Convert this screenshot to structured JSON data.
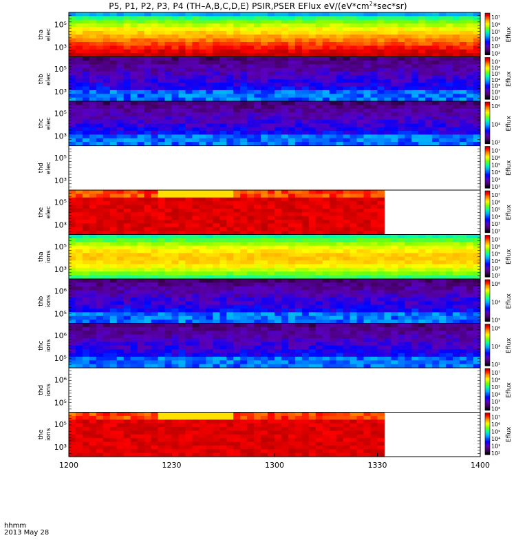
{
  "title": {
    "prefix": "P5, P1, P2, P3, P4 (TH–A,B,C,D,E) PSIR,PSER EFlux eV/(eV*cm",
    "sup": "2",
    "suffix": "*sec*sr)"
  },
  "footer": {
    "line1": "hhmm",
    "line2": "2013 May 28"
  },
  "colors": {
    "background": "#ffffff",
    "frame": "#000000",
    "nodata": "#ffffff"
  },
  "chart_data": {
    "type": "heatmap",
    "x_axis": {
      "range": [
        "12:00",
        "14:00"
      ],
      "ticks": [
        "1200",
        "1230",
        "1300",
        "1330",
        "1400"
      ],
      "label": "hhmm"
    },
    "colorbar_name": "Eflux",
    "panels": [
      {
        "label_top": "tha",
        "label_bottom": "elec",
        "yticks": [
          "10⁵",
          "10³"
        ],
        "cbar": [
          "10⁷",
          "10⁶",
          "10⁵",
          "10⁴",
          "10³",
          "10²"
        ],
        "pattern": "full-strong",
        "data_end": "14:00"
      },
      {
        "label_top": "thb",
        "label_bottom": "elec",
        "yticks": [
          "10⁵",
          "10³"
        ],
        "cbar": [
          "10⁷",
          "10⁶",
          "10⁵",
          "10⁴",
          "10³",
          "10²",
          "10¹"
        ],
        "pattern": "noisy-low",
        "data_end": "14:00"
      },
      {
        "label_top": "thc",
        "label_bottom": "elec",
        "yticks": [
          "10⁵",
          "10³"
        ],
        "cbar": [
          "10⁶",
          "10⁴",
          "10²"
        ],
        "pattern": "noisy-low",
        "data_end": "14:00"
      },
      {
        "label_top": "thd",
        "label_bottom": "elec",
        "yticks": [
          "10⁵",
          "10³"
        ],
        "cbar": [
          "10⁷",
          "10⁶",
          "10⁵",
          "10⁴",
          "10³",
          "10²"
        ],
        "pattern": "empty",
        "data_end": "12:00"
      },
      {
        "label_top": "the",
        "label_bottom": "elec",
        "yticks": [
          "10⁵",
          "10³"
        ],
        "cbar": [
          "10⁷",
          "10⁶",
          "10⁵",
          "10⁴",
          "10³",
          "10²"
        ],
        "pattern": "partial-red",
        "data_end": "13:31"
      },
      {
        "label_top": "tha",
        "label_bottom": "ions",
        "yticks": [
          "10⁵",
          "10³"
        ],
        "cbar": [
          "10⁷",
          "10⁶",
          "10⁵",
          "10⁴",
          "10³",
          "10²"
        ],
        "pattern": "full-mid",
        "data_end": "14:00"
      },
      {
        "label_top": "thb",
        "label_bottom": "ions",
        "yticks": [
          "10⁶",
          "10⁵"
        ],
        "cbar": [
          "10⁶",
          "10⁴",
          "10²"
        ],
        "pattern": "noisy-low",
        "data_end": "14:00"
      },
      {
        "label_top": "thc",
        "label_bottom": "ions",
        "yticks": [
          "10⁶",
          "10⁵"
        ],
        "cbar": [
          "10⁶",
          "10⁴",
          "10²"
        ],
        "pattern": "noisy-low",
        "data_end": "14:00"
      },
      {
        "label_top": "thd",
        "label_bottom": "ions",
        "yticks": [
          "10⁶",
          "10⁵"
        ],
        "cbar": [
          "10⁷",
          "10⁶",
          "10⁵",
          "10⁴",
          "10³",
          "10²"
        ],
        "pattern": "empty",
        "data_end": "12:00"
      },
      {
        "label_top": "the",
        "label_bottom": "ions",
        "yticks": [
          "10⁵",
          "10³"
        ],
        "cbar": [
          "10⁷",
          "10⁶",
          "10⁵",
          "10⁴",
          "10³",
          "10²"
        ],
        "pattern": "partial-red",
        "data_end": "13:31"
      }
    ]
  }
}
